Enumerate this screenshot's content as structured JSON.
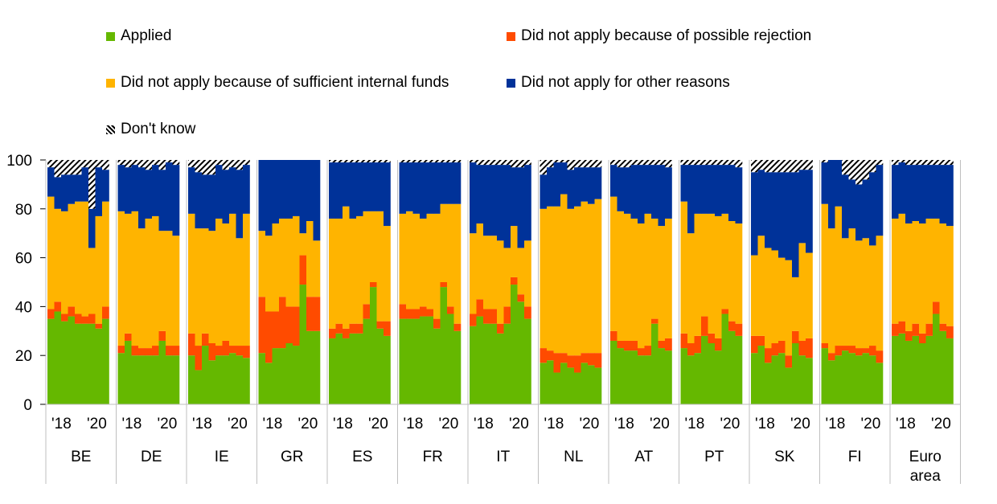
{
  "chart_data": {
    "type": "stacked-bar",
    "y_axis": {
      "min": 0,
      "max": 100,
      "ticks": [
        0,
        20,
        40,
        60,
        80,
        100
      ]
    },
    "tick_labels": [
      "'18",
      "'20"
    ],
    "series": [
      {
        "name": "Applied",
        "color": "#65b800"
      },
      {
        "name": "Did not apply because of possible rejection",
        "color": "#ff4b00"
      },
      {
        "name": "Did not apply because of sufficient internal funds",
        "color": "#ffb400"
      },
      {
        "name": "Did not apply for other reasons",
        "color": "#003299"
      },
      {
        "name": "Don't know",
        "color": "hatched"
      }
    ],
    "groups": [
      {
        "country": "BE",
        "applied": [
          35,
          38,
          34,
          36,
          33,
          33,
          33,
          31,
          35
        ],
        "rejection": [
          4,
          4,
          3,
          4,
          4,
          3,
          4,
          2,
          5
        ],
        "internal": [
          46,
          38,
          42,
          42,
          46,
          47,
          27,
          44,
          43
        ],
        "other": [
          12,
          13,
          15,
          12,
          11,
          14,
          16,
          20,
          13
        ]
      },
      {
        "country": "DE",
        "applied": [
          21,
          26,
          20,
          20,
          20,
          20,
          26,
          20,
          20
        ],
        "rejection": [
          3,
          3,
          4,
          3,
          3,
          4,
          4,
          4,
          4
        ],
        "internal": [
          55,
          49,
          55,
          49,
          53,
          53,
          41,
          47,
          45
        ],
        "other": [
          19,
          19,
          19,
          25,
          20,
          21,
          25,
          28,
          29
        ]
      },
      {
        "country": "IE",
        "applied": [
          20,
          14,
          24,
          18,
          20,
          20,
          21,
          20,
          19
        ],
        "rejection": [
          9,
          10,
          5,
          7,
          4,
          6,
          3,
          4,
          5
        ],
        "internal": [
          49,
          48,
          43,
          46,
          52,
          48,
          54,
          44,
          54
        ],
        "other": [
          19,
          23,
          22,
          23,
          22,
          22,
          19,
          28,
          20
        ]
      },
      {
        "country": "GR",
        "applied": [
          21,
          17,
          23,
          23,
          25,
          24,
          49,
          30,
          30
        ],
        "rejection": [
          23,
          21,
          15,
          21,
          15,
          16,
          12,
          14,
          14
        ],
        "internal": [
          27,
          31,
          36,
          32,
          36,
          37,
          9,
          31,
          23
        ],
        "other": [
          29,
          31,
          26,
          24,
          24,
          23,
          30,
          25,
          33
        ]
      },
      {
        "country": "ES",
        "applied": [
          27,
          29,
          27,
          29,
          29,
          35,
          48,
          31,
          28
        ],
        "rejection": [
          4,
          4,
          4,
          4,
          4,
          6,
          2,
          3,
          6
        ],
        "internal": [
          45,
          43,
          50,
          43,
          44,
          38,
          29,
          45,
          39
        ],
        "other": [
          23,
          23,
          18,
          23,
          22,
          20,
          20,
          20,
          26
        ]
      },
      {
        "country": "FR",
        "applied": [
          35,
          35,
          35,
          36,
          36,
          31,
          48,
          37,
          30
        ],
        "rejection": [
          6,
          4,
          4,
          4,
          3,
          4,
          2,
          3,
          3
        ],
        "internal": [
          37,
          40,
          39,
          36,
          39,
          43,
          32,
          42,
          49
        ],
        "other": [
          21,
          20,
          21,
          23,
          21,
          21,
          17,
          17,
          17
        ]
      },
      {
        "country": "IT",
        "applied": [
          32,
          36,
          33,
          33,
          29,
          33,
          49,
          42,
          35
        ],
        "rejection": [
          5,
          7,
          6,
          6,
          4,
          7,
          3,
          3,
          5
        ],
        "internal": [
          33,
          31,
          30,
          30,
          34,
          24,
          21,
          19,
          27
        ],
        "other": [
          29,
          24,
          29,
          29,
          31,
          34,
          24,
          33,
          31
        ]
      },
      {
        "country": "NL",
        "applied": [
          17,
          18,
          13,
          17,
          15,
          13,
          17,
          16,
          15
        ],
        "rejection": [
          6,
          4,
          8,
          4,
          5,
          7,
          4,
          5,
          6
        ],
        "internal": [
          57,
          59,
          60,
          65,
          60,
          61,
          62,
          61,
          63
        ],
        "other": [
          14,
          16,
          18,
          13,
          16,
          16,
          14,
          15,
          13
        ]
      },
      {
        "country": "AT",
        "applied": [
          26,
          23,
          22,
          22,
          20,
          20,
          33,
          23,
          22
        ],
        "rejection": [
          4,
          3,
          4,
          4,
          3,
          4,
          2,
          3,
          5
        ],
        "internal": [
          55,
          53,
          52,
          50,
          51,
          54,
          41,
          47,
          49
        ],
        "other": [
          13,
          18,
          19,
          22,
          24,
          20,
          22,
          25,
          21
        ]
      },
      {
        "country": "PT",
        "applied": [
          23,
          20,
          21,
          28,
          25,
          22,
          37,
          30,
          28
        ],
        "rejection": [
          6,
          5,
          7,
          8,
          4,
          5,
          2,
          4,
          5
        ],
        "internal": [
          54,
          45,
          50,
          42,
          49,
          50,
          39,
          41,
          41
        ],
        "other": [
          15,
          28,
          20,
          20,
          20,
          21,
          20,
          23,
          23
        ]
      },
      {
        "country": "SK",
        "applied": [
          21,
          24,
          17,
          20,
          21,
          15,
          25,
          20,
          19
        ],
        "rejection": [
          7,
          4,
          6,
          5,
          5,
          5,
          5,
          6,
          8
        ],
        "internal": [
          33,
          41,
          41,
          38,
          34,
          39,
          22,
          40,
          35
        ],
        "other": [
          34,
          27,
          31,
          32,
          35,
          36,
          43,
          30,
          34
        ]
      },
      {
        "country": "FI",
        "applied": [
          23,
          18,
          20,
          22,
          21,
          20,
          21,
          20,
          17
        ],
        "rejection": [
          2,
          3,
          4,
          2,
          3,
          3,
          2,
          4,
          5
        ],
        "internal": [
          57,
          51,
          57,
          44,
          48,
          44,
          45,
          41,
          47
        ],
        "other": [
          17,
          28,
          19,
          26,
          20,
          23,
          24,
          30,
          29
        ]
      },
      {
        "country": "Euro area",
        "applied": [
          28,
          29,
          26,
          28,
          25,
          28,
          37,
          30,
          27
        ],
        "rejection": [
          5,
          5,
          4,
          5,
          4,
          5,
          5,
          3,
          5
        ],
        "internal": [
          43,
          44,
          44,
          42,
          45,
          43,
          34,
          41,
          41
        ],
        "other": [
          22,
          21,
          24,
          23,
          24,
          22,
          22,
          24,
          25
        ]
      }
    ]
  }
}
